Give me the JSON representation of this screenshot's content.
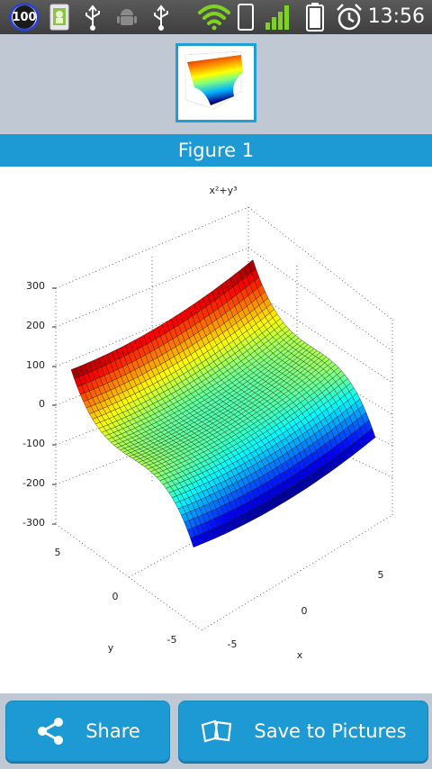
{
  "status_bar": {
    "notification_count": "100",
    "time": "13:56",
    "icons": [
      "android-app-icon",
      "usb-icon",
      "android-debug-icon",
      "usb-icon",
      "wifi-icon",
      "phone-icon",
      "signal-icon",
      "battery-icon",
      "alarm-icon"
    ]
  },
  "header": {
    "figure_title": "Figure 1"
  },
  "plot": {
    "title": "x²+y³",
    "z_ticks": [
      "300",
      "200",
      "100",
      "0",
      "-100",
      "-200",
      "-300"
    ],
    "y_ticks": [
      "5",
      "0",
      "-5"
    ],
    "x_ticks": [
      "-5",
      "0",
      "5"
    ],
    "xlabel": "x",
    "ylabel": "y",
    "colormap": [
      "#00007f",
      "#0000ff",
      "#007fff",
      "#00ffff",
      "#7fff7f",
      "#ffff00",
      "#ff7f00",
      "#ff0000",
      "#7f0000"
    ]
  },
  "chart_data": {
    "type": "surface",
    "function": "x²+y³",
    "x_range": [
      -5,
      5
    ],
    "y_range": [
      -5,
      5
    ],
    "zlim": [
      -300,
      300
    ],
    "x_ticks": [
      -5,
      0,
      5
    ],
    "y_ticks": [
      -5,
      0,
      5
    ],
    "z_ticks": [
      -300,
      -200,
      -100,
      0,
      100,
      200,
      300
    ],
    "grid": true
  },
  "actions": {
    "share_label": "Share",
    "save_label": "Save to Pictures"
  },
  "colors": {
    "accent": "#1d9ad3",
    "panel": "#bfc8d3",
    "status_bar": "#4a4a4a"
  }
}
